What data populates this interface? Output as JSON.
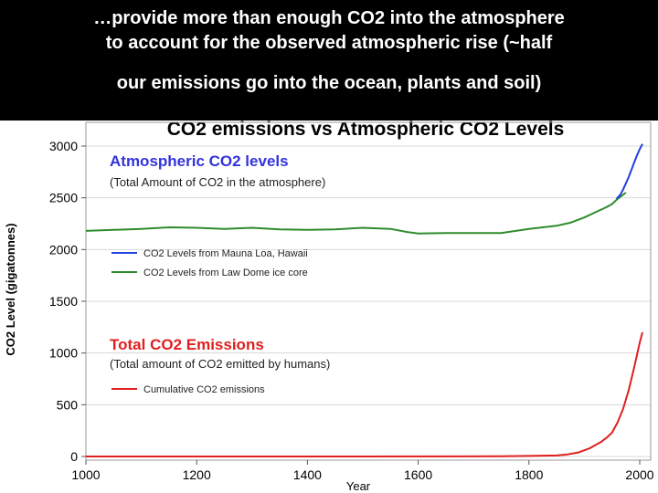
{
  "caption": {
    "line1": "…provide more than enough CO2 into the atmosphere",
    "line2": "to account for the observed atmospheric rise  (~half",
    "line3": "our emissions go into the ocean, plants and soil)"
  },
  "chart_data": {
    "type": "line",
    "title": "CO2 emissions vs Atmospheric CO2 Levels",
    "xlabel": "Year",
    "ylabel": "CO2 Level (gigatonnes)",
    "xlim": [
      1000,
      2000
    ],
    "ylim": [
      0,
      3000
    ],
    "x_ticks": [
      1000,
      1200,
      1400,
      1600,
      1800,
      2000
    ],
    "y_ticks": [
      0,
      500,
      1000,
      1500,
      2000,
      2500,
      3000
    ],
    "grid": "horizontal",
    "annotations": {
      "atmospheric_title": "Atmospheric CO2 levels",
      "atmospheric_subtitle": "(Total Amount of CO2 in the atmosphere)",
      "emissions_title": "Total CO2 Emissions",
      "emissions_subtitle": "(Total amount of CO2 emitted by humans)"
    },
    "colors": {
      "title": "#000000",
      "atmospheric_title": "#3333dd",
      "emissions_title": "#e02020",
      "grid": "#d8d8d8"
    },
    "series": [
      {
        "name": "CO2 Levels from Law Dome ice core",
        "color": "#2e8b2e",
        "points": [
          [
            1000,
            2180
          ],
          [
            1050,
            2190
          ],
          [
            1100,
            2200
          ],
          [
            1150,
            2215
          ],
          [
            1200,
            2210
          ],
          [
            1250,
            2200
          ],
          [
            1300,
            2210
          ],
          [
            1350,
            2195
          ],
          [
            1400,
            2190
          ],
          [
            1450,
            2195
          ],
          [
            1500,
            2210
          ],
          [
            1550,
            2200
          ],
          [
            1580,
            2170
          ],
          [
            1600,
            2155
          ],
          [
            1650,
            2160
          ],
          [
            1700,
            2160
          ],
          [
            1750,
            2160
          ],
          [
            1800,
            2200
          ],
          [
            1850,
            2230
          ],
          [
            1875,
            2260
          ],
          [
            1900,
            2310
          ],
          [
            1920,
            2360
          ],
          [
            1940,
            2410
          ],
          [
            1950,
            2440
          ],
          [
            1960,
            2490
          ],
          [
            1975,
            2550
          ]
        ]
      },
      {
        "name": "CO2 Levels from Mauna Loa, Hawaii",
        "color": "#2040e0",
        "points": [
          [
            1958,
            2490
          ],
          [
            1965,
            2530
          ],
          [
            1970,
            2580
          ],
          [
            1975,
            2640
          ],
          [
            1980,
            2700
          ],
          [
            1985,
            2770
          ],
          [
            1990,
            2840
          ],
          [
            1995,
            2910
          ],
          [
            2000,
            2970
          ],
          [
            2005,
            3020
          ]
        ]
      },
      {
        "name": "Cumulative CO2 emissions",
        "color": "#e02020",
        "points": [
          [
            1000,
            0
          ],
          [
            1500,
            0
          ],
          [
            1750,
            2
          ],
          [
            1800,
            5
          ],
          [
            1850,
            10
          ],
          [
            1870,
            20
          ],
          [
            1890,
            40
          ],
          [
            1900,
            60
          ],
          [
            1910,
            80
          ],
          [
            1920,
            110
          ],
          [
            1930,
            140
          ],
          [
            1940,
            180
          ],
          [
            1950,
            230
          ],
          [
            1960,
            330
          ],
          [
            1970,
            460
          ],
          [
            1980,
            640
          ],
          [
            1990,
            860
          ],
          [
            2000,
            1100
          ],
          [
            2005,
            1200
          ]
        ]
      }
    ]
  }
}
